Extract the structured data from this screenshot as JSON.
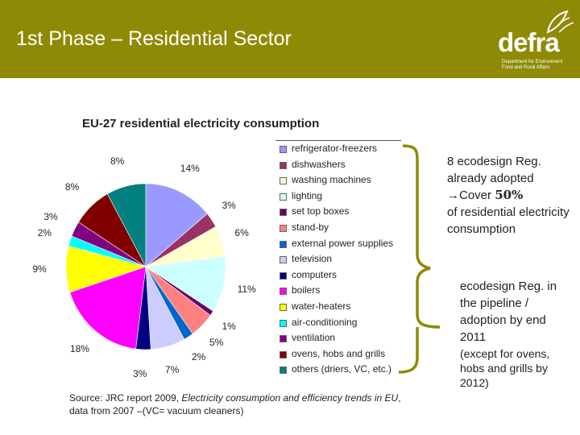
{
  "slide": {
    "title": "1st Phase – Residential Sector",
    "logo_text": "defra",
    "logo_subtext": "Department for Environment Food and Rural Affairs",
    "header_color": "#8f8a06"
  },
  "chart_data": {
    "type": "pie",
    "title": "EU-27 residential electricity consumption",
    "categories": [
      "refrigerator-freezers",
      "dishwashers",
      "washing machines",
      "lighting",
      "set top boxes",
      "stand-by",
      "external power supplies",
      "television",
      "computers",
      "boilers",
      "water-heaters",
      "air-conditioning",
      "ventilation",
      "ovens, hobs and grills",
      "others (driers, VC, etc.)"
    ],
    "values": [
      14,
      3,
      6,
      11,
      1,
      5,
      2,
      7,
      3,
      18,
      9,
      2,
      3,
      8,
      8
    ],
    "value_labels": [
      "14%",
      "3%",
      "6%",
      "11%",
      "1%",
      "5%",
      "2%",
      "7%",
      "3%",
      "18%",
      "9%",
      "2%",
      "3%",
      "8%",
      "8%"
    ],
    "colors": [
      "#9999ff",
      "#993366",
      "#ffffcc",
      "#ccffff",
      "#660066",
      "#ff8080",
      "#0066cc",
      "#ccccff",
      "#000080",
      "#ff00ff",
      "#ffff00",
      "#00ffff",
      "#800080",
      "#800000",
      "#008080"
    ],
    "legend_position": "right"
  },
  "source": {
    "prefix": "Source: JRC report 2009, ",
    "italic": "Electricity consumption and efficiency trends in EU",
    "suffix": ", data from 2007 –(VC= vacuum cleaners)"
  },
  "notes": {
    "adopted_line1": "8 ecodesign Reg. already adopted",
    "adopted_arrow": "→",
    "adopted_cover": "Cover ",
    "adopted_percent": "50%",
    "adopted_rest": "of residential electricity consumption",
    "pipeline": "ecodesign Reg. in the pipeline / adoption by end 2011",
    "exception": "(except for ovens, hobs and grills by 2012)"
  }
}
